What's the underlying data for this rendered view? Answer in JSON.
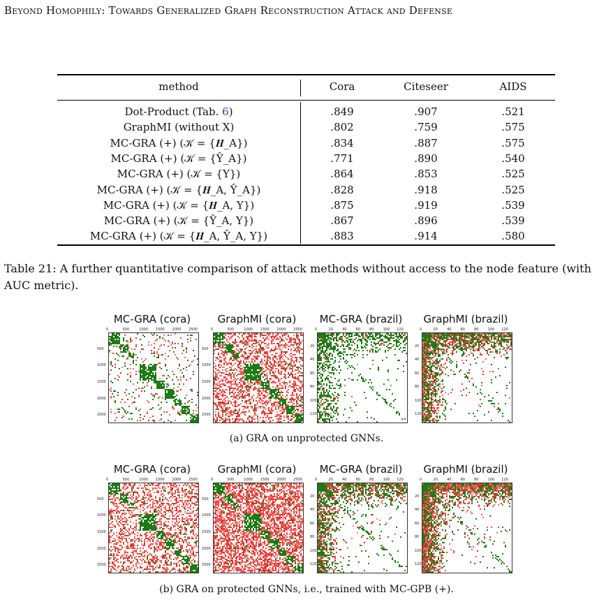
{
  "header": "Beyond Homophily: Towards Generalized Graph Reconstruction Attack and Defense",
  "table": {
    "columns": [
      "method",
      "Cora",
      "Citeseer",
      "AIDS"
    ],
    "rows": [
      {
        "method_pre": "Dot-Product (Tab. ",
        "method_link": "6",
        "method_post": ")",
        "cora": ".849",
        "citeseer": ".907",
        "aids": ".521"
      },
      {
        "method_pre": "GraphMI (without X)",
        "cora": ".802",
        "citeseer": ".759",
        "aids": ".575"
      },
      {
        "method_pre": "MC-GRA (+) (𝒦 = {𝑯_A})",
        "cora": ".834",
        "citeseer": ".887",
        "aids": ".575"
      },
      {
        "method_pre": "MC-GRA (+) (𝒦 = {Ŷ_A})",
        "cora": ".771",
        "citeseer": ".890",
        "aids": ".540"
      },
      {
        "method_pre": "MC-GRA (+) (𝒦 = {Y})",
        "cora": ".864",
        "citeseer": ".853",
        "aids": ".525"
      },
      {
        "method_pre": "MC-GRA (+) (𝒦 = {𝑯_A, Ŷ_A})",
        "cora": ".828",
        "citeseer": ".918",
        "aids": ".525"
      },
      {
        "method_pre": "MC-GRA (+) (𝒦 = {𝑯_A, Y})",
        "cora": ".875",
        "citeseer": ".919",
        "aids": ".539"
      },
      {
        "method_pre": "MC-GRA (+) (𝒦 = {Ŷ_A, Y})",
        "cora": ".867",
        "citeseer": ".896",
        "aids": ".539"
      },
      {
        "method_pre": "MC-GRA (+) (𝒦 = {𝑯_A, Ŷ_A, Y})",
        "cora": ".883",
        "citeseer": ".914",
        "aids": ".580"
      }
    ]
  },
  "caption": "Table 21: A further quantitative comparison of attack methods without access to the node feature (with AUC metric).",
  "figures": [
    {
      "subcaption": "(a) GRA on unprotected GNNs.",
      "panels": [
        {
          "title": "MC-GRA (cora)",
          "dataset": "cora",
          "red_density": 0.06,
          "green_density": 0.55,
          "color_red": "#e8201b",
          "color_green": "#1e7a14"
        },
        {
          "title": "GraphMI (cora)",
          "dataset": "cora",
          "red_density": 0.45,
          "green_density": 0.6,
          "color_red": "#e8201b",
          "color_green": "#1e7a14"
        },
        {
          "title": "MC-GRA (brazil)",
          "dataset": "brazil",
          "red_density": 0.08,
          "green_density": 0.6,
          "color_red": "#e8201b",
          "color_green": "#1e7a14"
        },
        {
          "title": "GraphMI (brazil)",
          "dataset": "brazil",
          "red_density": 0.45,
          "green_density": 0.55,
          "color_red": "#e8201b",
          "color_green": "#1e7a14"
        }
      ]
    },
    {
      "subcaption": "(b) GRA on protected GNNs, i.e., trained with MC-GPB (+).",
      "panels": [
        {
          "title": "MC-GRA (cora)",
          "dataset": "cora",
          "red_density": 0.4,
          "green_density": 0.5,
          "color_red": "#e8201b",
          "color_green": "#1e7a14"
        },
        {
          "title": "GraphMI (cora)",
          "dataset": "cora",
          "red_density": 0.65,
          "green_density": 0.5,
          "color_red": "#e8201b",
          "color_green": "#1e7a14"
        },
        {
          "title": "MC-GRA (brazil)",
          "dataset": "brazil",
          "red_density": 0.35,
          "green_density": 0.55,
          "color_red": "#e8201b",
          "color_green": "#1e7a14"
        },
        {
          "title": "GraphMI (brazil)",
          "dataset": "brazil",
          "red_density": 0.6,
          "green_density": 0.5,
          "color_red": "#e8201b",
          "color_green": "#1e7a14"
        }
      ]
    }
  ],
  "axis_ticks": {
    "cora_x": [
      "0",
      "500",
      "1000",
      "1500",
      "2000",
      "2500"
    ],
    "cora_y": [
      "500",
      "1000",
      "1500",
      "2000",
      "2500"
    ],
    "brazil_x": [
      "0",
      "20",
      "40",
      "60",
      "80",
      "100",
      "120"
    ],
    "brazil_y": [
      "20",
      "40",
      "60",
      "80",
      "100",
      "120"
    ]
  }
}
